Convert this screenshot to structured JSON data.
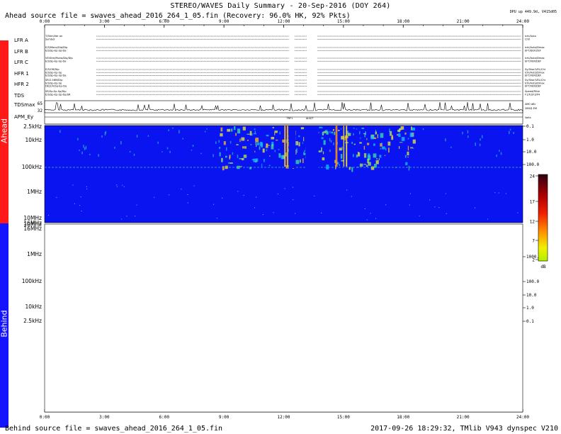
{
  "header": {
    "title": "STEREO/WAVES Daily Summary - 20-Sep-2016 (DOY 264)",
    "ahead_source": "Ahead source file = swaves_ahead_2016_264_1_05.fin (Recovery: 96.0% HK, 92% Pkts)",
    "dpu": "DPU up 449.9d, V415d05"
  },
  "footer": {
    "behind_source": "Behind source file = swaves_ahead_2016_264_1_05.fin",
    "right": "2017-09-26 18:29:32, TMlib V943 dynspec V210"
  },
  "sidebar": {
    "ahead_label": "Ahead",
    "behind_label": "Behind",
    "ahead_color": "#ff1a1a",
    "behind_color": "#1414ff"
  },
  "time_axis": {
    "labels": [
      "0:00",
      "3:00",
      "6:00",
      "9:00",
      "12:00",
      "15:00",
      "18:00",
      "21:00",
      "24:00"
    ]
  },
  "hk_rows": [
    {
      "name": "LFR A",
      "left": [
        "T/Stim/Ver on",
        "Symbol"
      ],
      "right": [
        "Ichi/Auto",
        "Ch0"
      ]
    },
    {
      "name": "LFR B",
      "left": [
        "E/S/Mono/Dip/Dip",
        "E/S/Sp-Ep-Sp-Da"
      ],
      "right": [
        "Ichi/Auto/Dmax",
        "EFT/DEF/ZEF"
      ]
    },
    {
      "name": "LFR C",
      "left": [
        "VE/Stm/Mono/Dip/Dip",
        "E/S/Sp-Ep-Sp-Da"
      ],
      "right": [
        "Ichi/Auto/Dmax",
        "EFT/VER/DEF"
      ]
    },
    {
      "name": "HFR 1",
      "left": [
        "E/S/Off/Dip",
        "E/S/Sp-Ep-Sp",
        "E/S/Sp-Ep-Sp-Da"
      ],
      "right": [
        "Sy/Shar/VEL/Chr",
        "Ichi/Auto/Dmax",
        "EFT/VER/DEF"
      ]
    },
    {
      "name": "HFR 2",
      "left": [
        "SR/2.56M/Dip",
        "E/S/Sp-Ep-Sp",
        "DE/2/V/Sp-Ep-Da"
      ],
      "right": [
        "Sy/Shar/VEL/Chr",
        "Ichi/Auto/Dmax",
        "EFT/VER/DEF"
      ]
    },
    {
      "name": "TDS",
      "left": [
        "SR/Sp-Ep-Sp/Dip",
        "E/S/Sp-Ep-Sp-Da/SR"
      ],
      "right": [
        "Speed/Filter",
        "F1/F2/F3/F4"
      ]
    }
  ],
  "tds_max": {
    "label": "TDSmax",
    "ticks": [
      "65",
      "32"
    ],
    "right": [
      "4M0 dBr",
      "2M4D EM"
    ]
  },
  "apm": {
    "label": "APM_Ey",
    "markers": [
      "TRF1",
      "ALN/T"
    ],
    "right": "Volts"
  },
  "ahead_panel": {
    "freq_labels": [
      "2.5kHz",
      "10kHz",
      "100kHz",
      "1MHz",
      "10MHz",
      "16MHz"
    ]
  },
  "behind_panel": {
    "freq_labels": [
      "16MHz",
      "10MHz",
      "1MHz",
      "100kHz",
      "10kHz",
      "2.5kHz"
    ]
  },
  "scales": {
    "ahead": [
      "0.1",
      "1.0",
      "10.0",
      "100.0"
    ],
    "behind": [
      "1000.0",
      "100.0",
      "10.0",
      "1.0",
      "0.1"
    ]
  },
  "colorbar": {
    "ticks": [
      "24",
      "17",
      "12",
      "7",
      "2"
    ],
    "unit": "dB"
  },
  "chart_data": {
    "type": "heatmap",
    "title": "STEREO/WAVES Daily Summary - 20-Sep-2016 (DOY 264)",
    "x": {
      "unit": "UT hours",
      "range": [
        0,
        24
      ],
      "tick_labels": [
        "0:00",
        "3:00",
        "6:00",
        "9:00",
        "12:00",
        "15:00",
        "18:00",
        "21:00",
        "24:00"
      ]
    },
    "y_ahead": {
      "scale": "log",
      "range_hz": [
        2500,
        16000000
      ],
      "tick_labels": [
        "2.5kHz",
        "10kHz",
        "100kHz",
        "1MHz",
        "10MHz",
        "16MHz"
      ]
    },
    "color_scale": {
      "unit": "dB",
      "range": [
        2,
        24
      ],
      "ticks": [
        2,
        7,
        12,
        17,
        24
      ]
    },
    "data_gaps_hours": [
      [
        12.25,
        12.6
      ],
      [
        13.1,
        13.75
      ]
    ],
    "series": [
      {
        "name": "Ahead",
        "panel": "ahead",
        "enhanced_interval_hours": [
          8.7,
          18.5
        ],
        "strong_bursts_hours": [
          [
            12.0,
            12.3
          ],
          [
            14.5,
            15.2
          ]
        ]
      },
      {
        "name": "Behind",
        "panel": "behind",
        "values": []
      }
    ]
  }
}
